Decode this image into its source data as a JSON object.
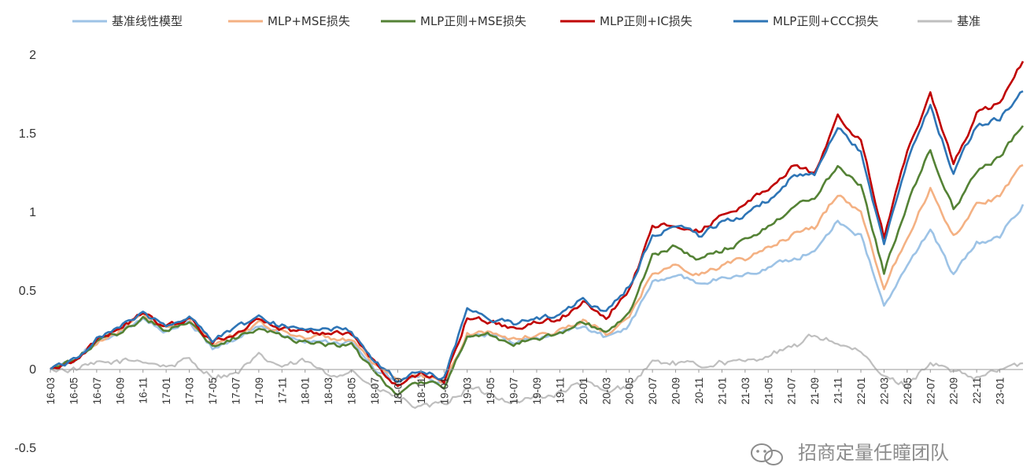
{
  "chart_data": {
    "type": "line",
    "title": "",
    "xlabel": "",
    "ylabel": "",
    "ylim": [
      -0.5,
      2
    ],
    "yticks": [
      {
        "value": 2,
        "label": "2"
      },
      {
        "value": 1.5,
        "label": "1.5"
      },
      {
        "value": 1,
        "label": "1"
      },
      {
        "value": 0.5,
        "label": "0.5"
      },
      {
        "value": 0,
        "label": "0"
      },
      {
        "value": -0.5,
        "label": "-0.5"
      }
    ],
    "xticks": [
      "16-03",
      "16-05",
      "16-07",
      "16-09",
      "16-11",
      "17-01",
      "17-03",
      "17-05",
      "17-07",
      "17-09",
      "17-11",
      "18-01",
      "18-03",
      "18-05",
      "18-07",
      "18-09",
      "18-11",
      "19-01",
      "19-03",
      "19-05",
      "19-07",
      "19-09",
      "19-11",
      "20-01",
      "20-03",
      "20-05",
      "20-07",
      "20-09",
      "20-11",
      "21-01",
      "21-03",
      "21-05",
      "21-07",
      "21-09",
      "21-11",
      "22-01",
      "22-03",
      "22-05",
      "22-07",
      "22-09",
      "22-11",
      "23-01"
    ],
    "x": [
      "16-03",
      "16-05",
      "16-07",
      "16-09",
      "16-11",
      "17-01",
      "17-03",
      "17-05",
      "17-07",
      "17-09",
      "17-11",
      "18-01",
      "18-03",
      "18-05",
      "18-07",
      "18-09",
      "18-11",
      "19-01",
      "19-03",
      "19-05",
      "19-07",
      "19-09",
      "19-11",
      "20-01",
      "20-03",
      "20-05",
      "20-07",
      "20-09",
      "20-11",
      "21-01",
      "21-03",
      "21-05",
      "21-07",
      "21-09",
      "21-11",
      "22-01",
      "22-03",
      "22-05",
      "22-07",
      "22-09",
      "22-11",
      "23-01",
      "23-03"
    ],
    "grid": false,
    "legend": "top",
    "series": [
      {
        "name": "基准",
        "color": "#bfbfbf",
        "values": [
          0.0,
          0.0,
          0.03,
          0.05,
          0.06,
          0.02,
          0.06,
          -0.04,
          -0.03,
          0.08,
          0.02,
          0.05,
          -0.04,
          0.0,
          -0.12,
          -0.18,
          -0.25,
          -0.22,
          -0.12,
          -0.16,
          -0.2,
          -0.18,
          -0.15,
          -0.08,
          -0.15,
          -0.1,
          0.05,
          0.04,
          0.02,
          0.05,
          0.04,
          0.1,
          0.13,
          0.22,
          0.17,
          0.1,
          -0.05,
          -0.1,
          0.05,
          -0.02,
          -0.06,
          0.0,
          0.04
        ]
      },
      {
        "name": "基准线性模型",
        "color": "#9dc3e6",
        "values": [
          0.0,
          0.05,
          0.18,
          0.24,
          0.33,
          0.24,
          0.3,
          0.14,
          0.19,
          0.28,
          0.22,
          0.19,
          0.18,
          0.17,
          0.0,
          -0.08,
          -0.04,
          -0.1,
          0.21,
          0.22,
          0.17,
          0.2,
          0.22,
          0.28,
          0.2,
          0.28,
          0.55,
          0.6,
          0.55,
          0.58,
          0.6,
          0.65,
          0.7,
          0.75,
          0.95,
          0.85,
          0.4,
          0.65,
          0.9,
          0.6,
          0.8,
          0.85,
          1.05
        ]
      },
      {
        "name": "MLP+MSE损失",
        "color": "#f4b183",
        "values": [
          0.0,
          0.05,
          0.18,
          0.25,
          0.34,
          0.26,
          0.32,
          0.16,
          0.22,
          0.3,
          0.24,
          0.21,
          0.2,
          0.19,
          0.02,
          -0.08,
          -0.03,
          -0.09,
          0.23,
          0.24,
          0.19,
          0.22,
          0.25,
          0.31,
          0.23,
          0.32,
          0.62,
          0.66,
          0.6,
          0.66,
          0.7,
          0.78,
          0.85,
          0.9,
          1.12,
          1.0,
          0.52,
          0.85,
          1.15,
          0.85,
          1.05,
          1.1,
          1.3
        ]
      },
      {
        "name": "MLP正则+MSE损失",
        "color": "#548235",
        "values": [
          0.0,
          0.05,
          0.17,
          0.23,
          0.33,
          0.25,
          0.31,
          0.14,
          0.2,
          0.27,
          0.21,
          0.18,
          0.16,
          0.15,
          -0.02,
          -0.15,
          -0.07,
          -0.12,
          0.22,
          0.22,
          0.17,
          0.2,
          0.23,
          0.3,
          0.24,
          0.35,
          0.72,
          0.78,
          0.7,
          0.76,
          0.82,
          0.92,
          1.02,
          1.1,
          1.3,
          1.18,
          0.62,
          1.05,
          1.4,
          1.02,
          1.25,
          1.35,
          1.55
        ]
      },
      {
        "name": "MLP正则+IC损失",
        "color": "#c00000",
        "values": [
          0.0,
          0.06,
          0.19,
          0.26,
          0.36,
          0.27,
          0.33,
          0.17,
          0.24,
          0.32,
          0.26,
          0.24,
          0.24,
          0.23,
          0.04,
          -0.1,
          -0.03,
          -0.07,
          0.33,
          0.3,
          0.26,
          0.3,
          0.32,
          0.42,
          0.34,
          0.5,
          0.9,
          0.93,
          0.88,
          0.98,
          1.05,
          1.15,
          1.28,
          1.25,
          1.6,
          1.45,
          0.85,
          1.4,
          1.75,
          1.3,
          1.62,
          1.7,
          1.96
        ]
      },
      {
        "name": "MLP正则+CCC损失",
        "color": "#2e75b6",
        "values": [
          0.0,
          0.06,
          0.2,
          0.27,
          0.36,
          0.28,
          0.34,
          0.19,
          0.26,
          0.33,
          0.28,
          0.25,
          0.26,
          0.25,
          0.06,
          -0.08,
          -0.01,
          -0.05,
          0.38,
          0.32,
          0.29,
          0.33,
          0.35,
          0.45,
          0.36,
          0.53,
          0.85,
          0.92,
          0.85,
          0.94,
          0.98,
          1.08,
          1.22,
          1.24,
          1.56,
          1.38,
          0.8,
          1.32,
          1.68,
          1.25,
          1.55,
          1.6,
          1.77
        ]
      }
    ]
  },
  "legend_order": [
    "基准线性模型",
    "MLP+MSE损失",
    "MLP正则+MSE损失",
    "MLP正则+IC损失",
    "MLP正则+CCC损失",
    "基准"
  ],
  "watermark": {
    "text": "招商定量任瞳团队",
    "icon": "wechat-icon",
    "color": "#8c8c8c"
  }
}
